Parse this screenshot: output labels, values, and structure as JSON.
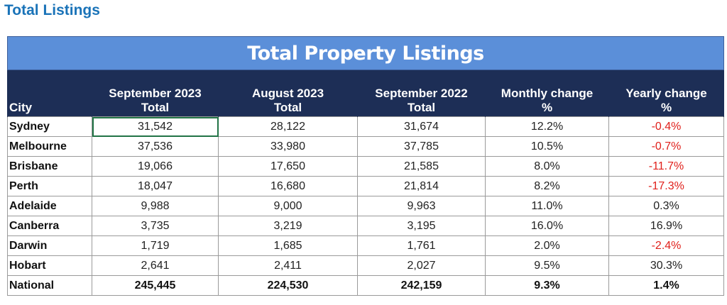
{
  "page": {
    "heading": "Total Listings"
  },
  "table": {
    "title": "Total Property Listings",
    "headers": [
      {
        "line1": "City",
        "line2": ""
      },
      {
        "line1": "September 2023",
        "line2": "Total"
      },
      {
        "line1": "August 2023",
        "line2": "Total"
      },
      {
        "line1": "September 2022",
        "line2": "Total"
      },
      {
        "line1": "Monthly change",
        "line2": "%"
      },
      {
        "line1": "Yearly change",
        "line2": "%"
      }
    ],
    "rows": [
      {
        "city": "Sydney",
        "sep2023": "31,542",
        "aug2023": "28,122",
        "sep2022": "31,674",
        "monthly": "12.2%",
        "yearly": "-0.4%"
      },
      {
        "city": "Melbourne",
        "sep2023": "37,536",
        "aug2023": "33,980",
        "sep2022": "37,785",
        "monthly": "10.5%",
        "yearly": "-0.7%"
      },
      {
        "city": "Brisbane",
        "sep2023": "19,066",
        "aug2023": "17,650",
        "sep2022": "21,585",
        "monthly": "8.0%",
        "yearly": "-11.7%"
      },
      {
        "city": "Perth",
        "sep2023": "18,047",
        "aug2023": "16,680",
        "sep2022": "21,814",
        "monthly": "8.2%",
        "yearly": "-17.3%"
      },
      {
        "city": "Adelaide",
        "sep2023": "9,988",
        "aug2023": "9,000",
        "sep2022": "9,963",
        "monthly": "11.0%",
        "yearly": "0.3%"
      },
      {
        "city": "Canberra",
        "sep2023": "3,735",
        "aug2023": "3,219",
        "sep2022": "3,195",
        "monthly": "16.0%",
        "yearly": "16.9%"
      },
      {
        "city": "Darwin",
        "sep2023": "1,719",
        "aug2023": "1,685",
        "sep2022": "1,761",
        "monthly": "2.0%",
        "yearly": "-2.4%"
      },
      {
        "city": "Hobart",
        "sep2023": "2,641",
        "aug2023": "2,411",
        "sep2022": "2,027",
        "monthly": "9.5%",
        "yearly": "30.3%"
      }
    ],
    "total": {
      "city": "National",
      "sep2023": "245,445",
      "aug2023": "224,530",
      "sep2022": "242,159",
      "monthly": "9.3%",
      "yearly": "1.4%"
    }
  },
  "colors": {
    "heading": "#1a73b8",
    "title_bar": "#5b8fd9",
    "header_bar": "#1d2e56",
    "negative": "#e0201b",
    "selection": "#217346"
  }
}
